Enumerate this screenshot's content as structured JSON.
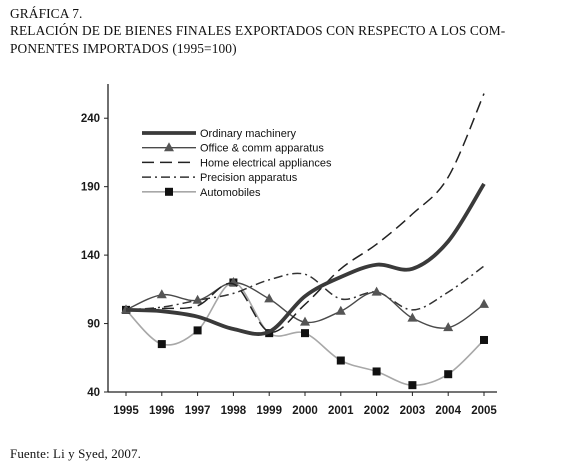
{
  "figure": {
    "caption_line1": "GRÁFICA 7.",
    "caption_line2": "RELACIÓN DE DE BIENES FINALES EXPORTADOS CON RESPECTO A LOS COM-",
    "caption_line3": "PONENTES IMPORTADOS (1995=100)",
    "source": "Fuente: Li y Syed, 2007."
  },
  "chart_data": {
    "type": "line",
    "title": "",
    "xlabel": "",
    "ylabel": "",
    "categories": [
      "1995",
      "1996",
      "1997",
      "1998",
      "1999",
      "2000",
      "2001",
      "2002",
      "2003",
      "2004",
      "2005"
    ],
    "ylim": [
      40,
      265
    ],
    "yticks": [
      40,
      90,
      140,
      190,
      240
    ],
    "grid": false,
    "legend_position": "top-left",
    "series": [
      {
        "name": "Ordinary machinery",
        "style": "thick-solid",
        "color": "#3a3a3a",
        "values": [
          100,
          99,
          95,
          86,
          84,
          110,
          124,
          133,
          130,
          150,
          192
        ]
      },
      {
        "name": "Office & comm apparatus",
        "style": "solid-triangle",
        "color": "#4a4a4a",
        "values": [
          100,
          111,
          107,
          120,
          108,
          91,
          99,
          113,
          94,
          87,
          104
        ]
      },
      {
        "name": "Home electrical appliances",
        "style": "long-dash",
        "color": "#222222",
        "values": [
          100,
          101,
          103,
          119,
          84,
          104,
          130,
          148,
          170,
          197,
          258
        ]
      },
      {
        "name": "Precision apparatus",
        "style": "dash-dot",
        "color": "#333333",
        "values": [
          100,
          102,
          107,
          112,
          122,
          126,
          108,
          113,
          100,
          113,
          132
        ]
      },
      {
        "name": "Automobiles",
        "style": "thin-gray-square",
        "color": "#a8a8a8",
        "values": [
          100,
          75,
          85,
          120,
          83,
          83,
          63,
          55,
          45,
          53,
          78
        ]
      }
    ]
  }
}
